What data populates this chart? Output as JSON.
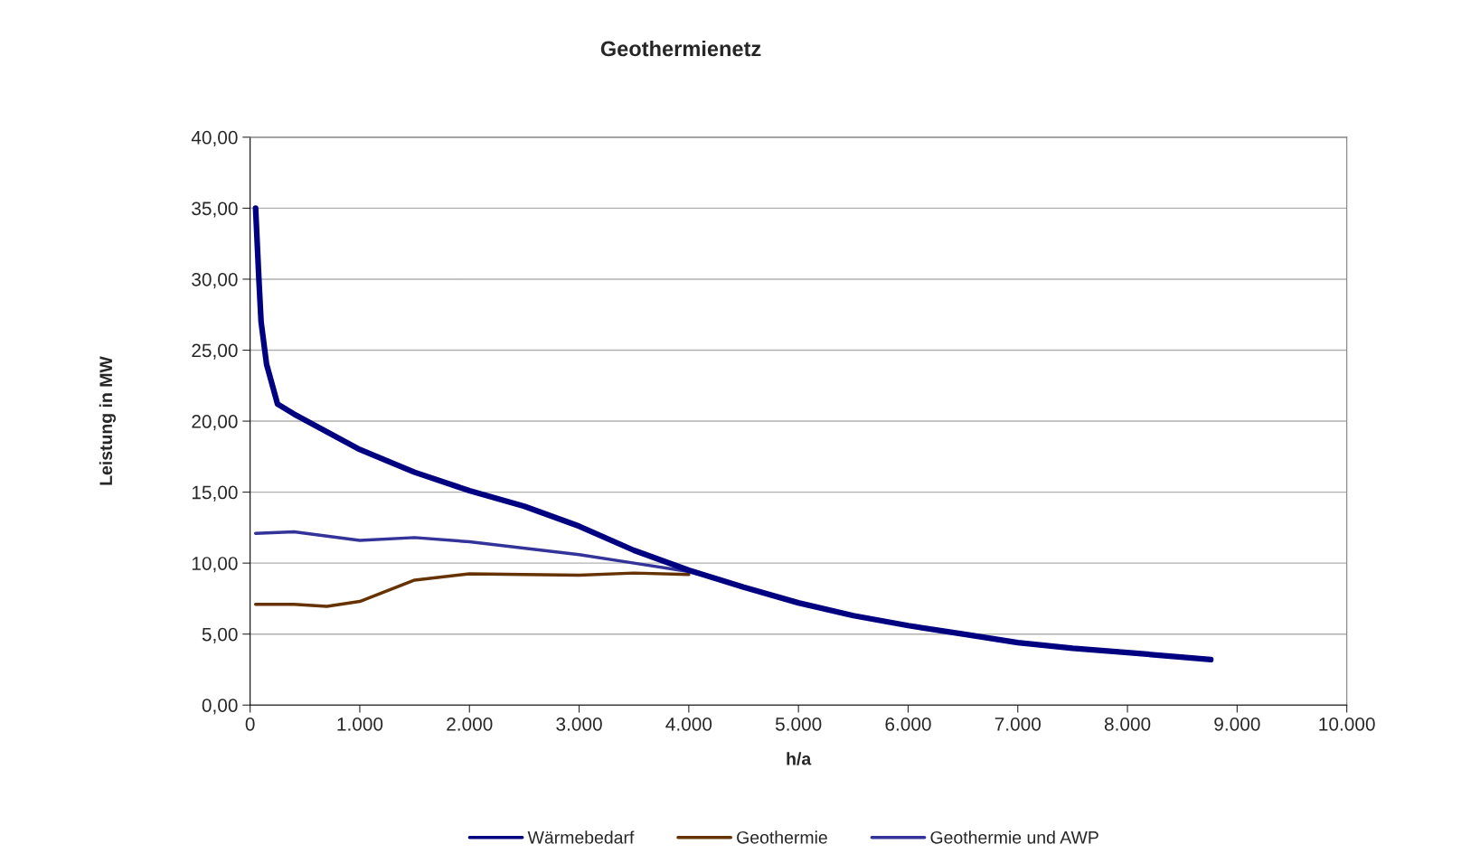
{
  "chart_data": {
    "type": "line",
    "title": "Geothermienetz",
    "xlabel": "h/a",
    "ylabel": "Leistung in MW",
    "xlim": [
      0,
      10000
    ],
    "xticks": [
      {
        "value": 0,
        "label": "0"
      },
      {
        "value": 1000,
        "label": "1.000"
      },
      {
        "value": 2000,
        "label": "2.000"
      },
      {
        "value": 3000,
        "label": "3.000"
      },
      {
        "value": 4000,
        "label": "4.000"
      },
      {
        "value": 5000,
        "label": "5.000"
      },
      {
        "value": 6000,
        "label": "6.000"
      },
      {
        "value": 7000,
        "label": "7.000"
      },
      {
        "value": 8000,
        "label": "8.000"
      },
      {
        "value": 9000,
        "label": "9.000"
      },
      {
        "value": 10000,
        "label": "10.000"
      }
    ],
    "ylim": [
      0,
      40
    ],
    "yticks": [
      {
        "value": 0,
        "label": "0,00"
      },
      {
        "value": 5,
        "label": "5,00"
      },
      {
        "value": 10,
        "label": "10,00"
      },
      {
        "value": 15,
        "label": "15,00"
      },
      {
        "value": 20,
        "label": "20,00"
      },
      {
        "value": 25,
        "label": "25,00"
      },
      {
        "value": 30,
        "label": "30,00"
      },
      {
        "value": 35,
        "label": "35,00"
      },
      {
        "value": 40,
        "label": "40,00"
      }
    ],
    "grid": "y",
    "legend": "bottom",
    "series": [
      {
        "name": "Wärmebedarf",
        "color": "#000080",
        "x": [
          50,
          80,
          100,
          150,
          250,
          400,
          1000,
          1500,
          2000,
          2500,
          3000,
          3500,
          4000,
          4500,
          5000,
          5500,
          6000,
          6500,
          7000,
          7500,
          8000,
          8760
        ],
        "values": [
          35,
          30,
          27,
          24,
          21.2,
          20.5,
          18,
          16.4,
          15.1,
          14,
          12.6,
          10.9,
          9.5,
          8.3,
          7.2,
          6.3,
          5.6,
          5,
          4.4,
          4,
          3.7,
          3.2
        ]
      },
      {
        "name": "Geothermie",
        "color": "#663300",
        "x": [
          50,
          400,
          700,
          1000,
          1500,
          2000,
          2500,
          3000,
          3500,
          4000
        ],
        "values": [
          7.1,
          7.1,
          6.95,
          7.3,
          8.8,
          9.25,
          9.2,
          9.15,
          9.3,
          9.2
        ]
      },
      {
        "name": "Geothermie und AWP",
        "color": "#333399",
        "x": [
          50,
          400,
          1000,
          1500,
          2000,
          3000,
          3500,
          4000,
          4200
        ],
        "values": [
          12.1,
          12.2,
          11.6,
          11.8,
          11.5,
          10.6,
          10,
          9.4,
          9.0
        ]
      }
    ]
  }
}
